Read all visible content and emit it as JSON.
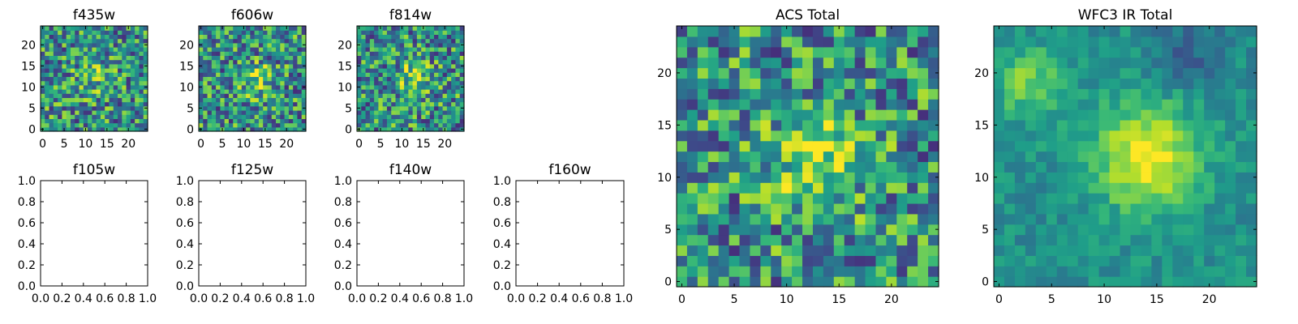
{
  "figure": {
    "colormap": "viridis",
    "colors": {
      "axis": "#000000",
      "background": "#ffffff"
    }
  },
  "chart_data": [
    {
      "id": "f435w",
      "type": "heatmap",
      "title": "f435w",
      "data_state": "noise image",
      "xlim": [
        -0.5,
        24.5
      ],
      "ylim": [
        -0.5,
        24.5
      ],
      "xticks": [
        0,
        5,
        10,
        15,
        20
      ],
      "yticks": [
        0,
        5,
        10,
        15,
        20
      ],
      "xtick_labels": [
        "0",
        "5",
        "10",
        "15",
        "20"
      ],
      "ytick_labels": [
        "0",
        "5",
        "10",
        "15",
        "20"
      ],
      "feature": {
        "peak": [
          12,
          12
        ],
        "level": 0.18,
        "sigma": 3.0
      }
    },
    {
      "id": "f606w",
      "type": "heatmap",
      "title": "f606w",
      "data_state": "noise image",
      "xlim": [
        -0.5,
        24.5
      ],
      "ylim": [
        -0.5,
        24.5
      ],
      "xticks": [
        0,
        5,
        10,
        15,
        20
      ],
      "yticks": [
        0,
        5,
        10,
        15,
        20
      ],
      "xtick_labels": [
        "0",
        "5",
        "10",
        "15",
        "20"
      ],
      "ytick_labels": [
        "0",
        "5",
        "10",
        "15",
        "20"
      ],
      "feature": {
        "peak": [
          13,
          12
        ],
        "level": 0.3,
        "sigma": 2.6
      }
    },
    {
      "id": "f814w",
      "type": "heatmap",
      "title": "f814w",
      "data_state": "noise image",
      "xlim": [
        -0.5,
        24.5
      ],
      "ylim": [
        -0.5,
        24.5
      ],
      "xticks": [
        0,
        5,
        10,
        15,
        20
      ],
      "yticks": [
        0,
        5,
        10,
        15,
        20
      ],
      "xtick_labels": [
        "0",
        "5",
        "10",
        "15",
        "20"
      ],
      "ytick_labels": [
        "0",
        "5",
        "10",
        "15",
        "20"
      ],
      "feature": {
        "peak": [
          13,
          12
        ],
        "level": 0.35,
        "sigma": 2.6
      }
    },
    {
      "id": "f105w",
      "type": "heatmap",
      "title": "f105w",
      "data_state": "empty",
      "xlim": [
        0,
        1
      ],
      "ylim": [
        0,
        1
      ],
      "xticks": [
        0,
        0.2,
        0.4,
        0.6,
        0.8,
        1.0
      ],
      "yticks": [
        0,
        0.2,
        0.4,
        0.6,
        0.8,
        1.0
      ],
      "xtick_labels": [
        "0.0",
        "0.2",
        "0.4",
        "0.6",
        "0.8",
        "1.0"
      ],
      "ytick_labels": [
        "0.0",
        "0.2",
        "0.4",
        "0.6",
        "0.8",
        "1.0"
      ]
    },
    {
      "id": "f125w",
      "type": "heatmap",
      "title": "f125w",
      "data_state": "empty",
      "xlim": [
        0,
        1
      ],
      "ylim": [
        0,
        1
      ],
      "xticks": [
        0,
        0.2,
        0.4,
        0.6,
        0.8,
        1.0
      ],
      "yticks": [
        0,
        0.2,
        0.4,
        0.6,
        0.8,
        1.0
      ],
      "xtick_labels": [
        "0.0",
        "0.2",
        "0.4",
        "0.6",
        "0.8",
        "1.0"
      ],
      "ytick_labels": [
        "0.0",
        "0.2",
        "0.4",
        "0.6",
        "0.8",
        "1.0"
      ]
    },
    {
      "id": "f140w",
      "type": "heatmap",
      "title": "f140w",
      "data_state": "empty",
      "xlim": [
        0,
        1
      ],
      "ylim": [
        0,
        1
      ],
      "xticks": [
        0,
        0.2,
        0.4,
        0.6,
        0.8,
        1.0
      ],
      "yticks": [
        0,
        0.2,
        0.4,
        0.6,
        0.8,
        1.0
      ],
      "xtick_labels": [
        "0.0",
        "0.2",
        "0.4",
        "0.6",
        "0.8",
        "1.0"
      ],
      "ytick_labels": [
        "0.0",
        "0.2",
        "0.4",
        "0.6",
        "0.8",
        "1.0"
      ]
    },
    {
      "id": "f160w",
      "type": "heatmap",
      "title": "f160w",
      "data_state": "empty",
      "xlim": [
        0,
        1
      ],
      "ylim": [
        0,
        1
      ],
      "xticks": [
        0,
        0.2,
        0.4,
        0.6,
        0.8,
        1.0
      ],
      "yticks": [
        0,
        0.2,
        0.4,
        0.6,
        0.8,
        1.0
      ],
      "xtick_labels": [
        "0.0",
        "0.2",
        "0.4",
        "0.6",
        "0.8",
        "1.0"
      ],
      "ytick_labels": [
        "0.0",
        "0.2",
        "0.4",
        "0.6",
        "0.8",
        "1.0"
      ]
    },
    {
      "id": "acs_total",
      "type": "heatmap",
      "title": "ACS Total",
      "data_state": "noise image",
      "xlim": [
        -0.5,
        24.5
      ],
      "ylim": [
        -0.5,
        24.5
      ],
      "xticks": [
        0,
        5,
        10,
        15,
        20
      ],
      "yticks": [
        0,
        5,
        10,
        15,
        20
      ],
      "xtick_labels": [
        "0",
        "5",
        "10",
        "15",
        "20"
      ],
      "ytick_labels": [
        "0",
        "5",
        "10",
        "15",
        "20"
      ],
      "feature": {
        "peak": [
          13,
          12
        ],
        "level": 0.45,
        "sigma": 3.0
      }
    },
    {
      "id": "wfc3_ir_total",
      "type": "heatmap",
      "title": "WFC3 IR Total",
      "data_state": "smooth image",
      "xlim": [
        -0.5,
        24.5
      ],
      "ylim": [
        -0.5,
        24.5
      ],
      "xticks": [
        0,
        5,
        10,
        15,
        20
      ],
      "yticks": [
        0,
        5,
        10,
        15,
        20
      ],
      "xtick_labels": [
        "0",
        "5",
        "10",
        "15",
        "20"
      ],
      "ytick_labels": [
        "0",
        "5",
        "10",
        "15",
        "20"
      ],
      "feature": {
        "peak": [
          14,
          12
        ],
        "level": 0.5,
        "sigma": 3.5
      }
    }
  ]
}
